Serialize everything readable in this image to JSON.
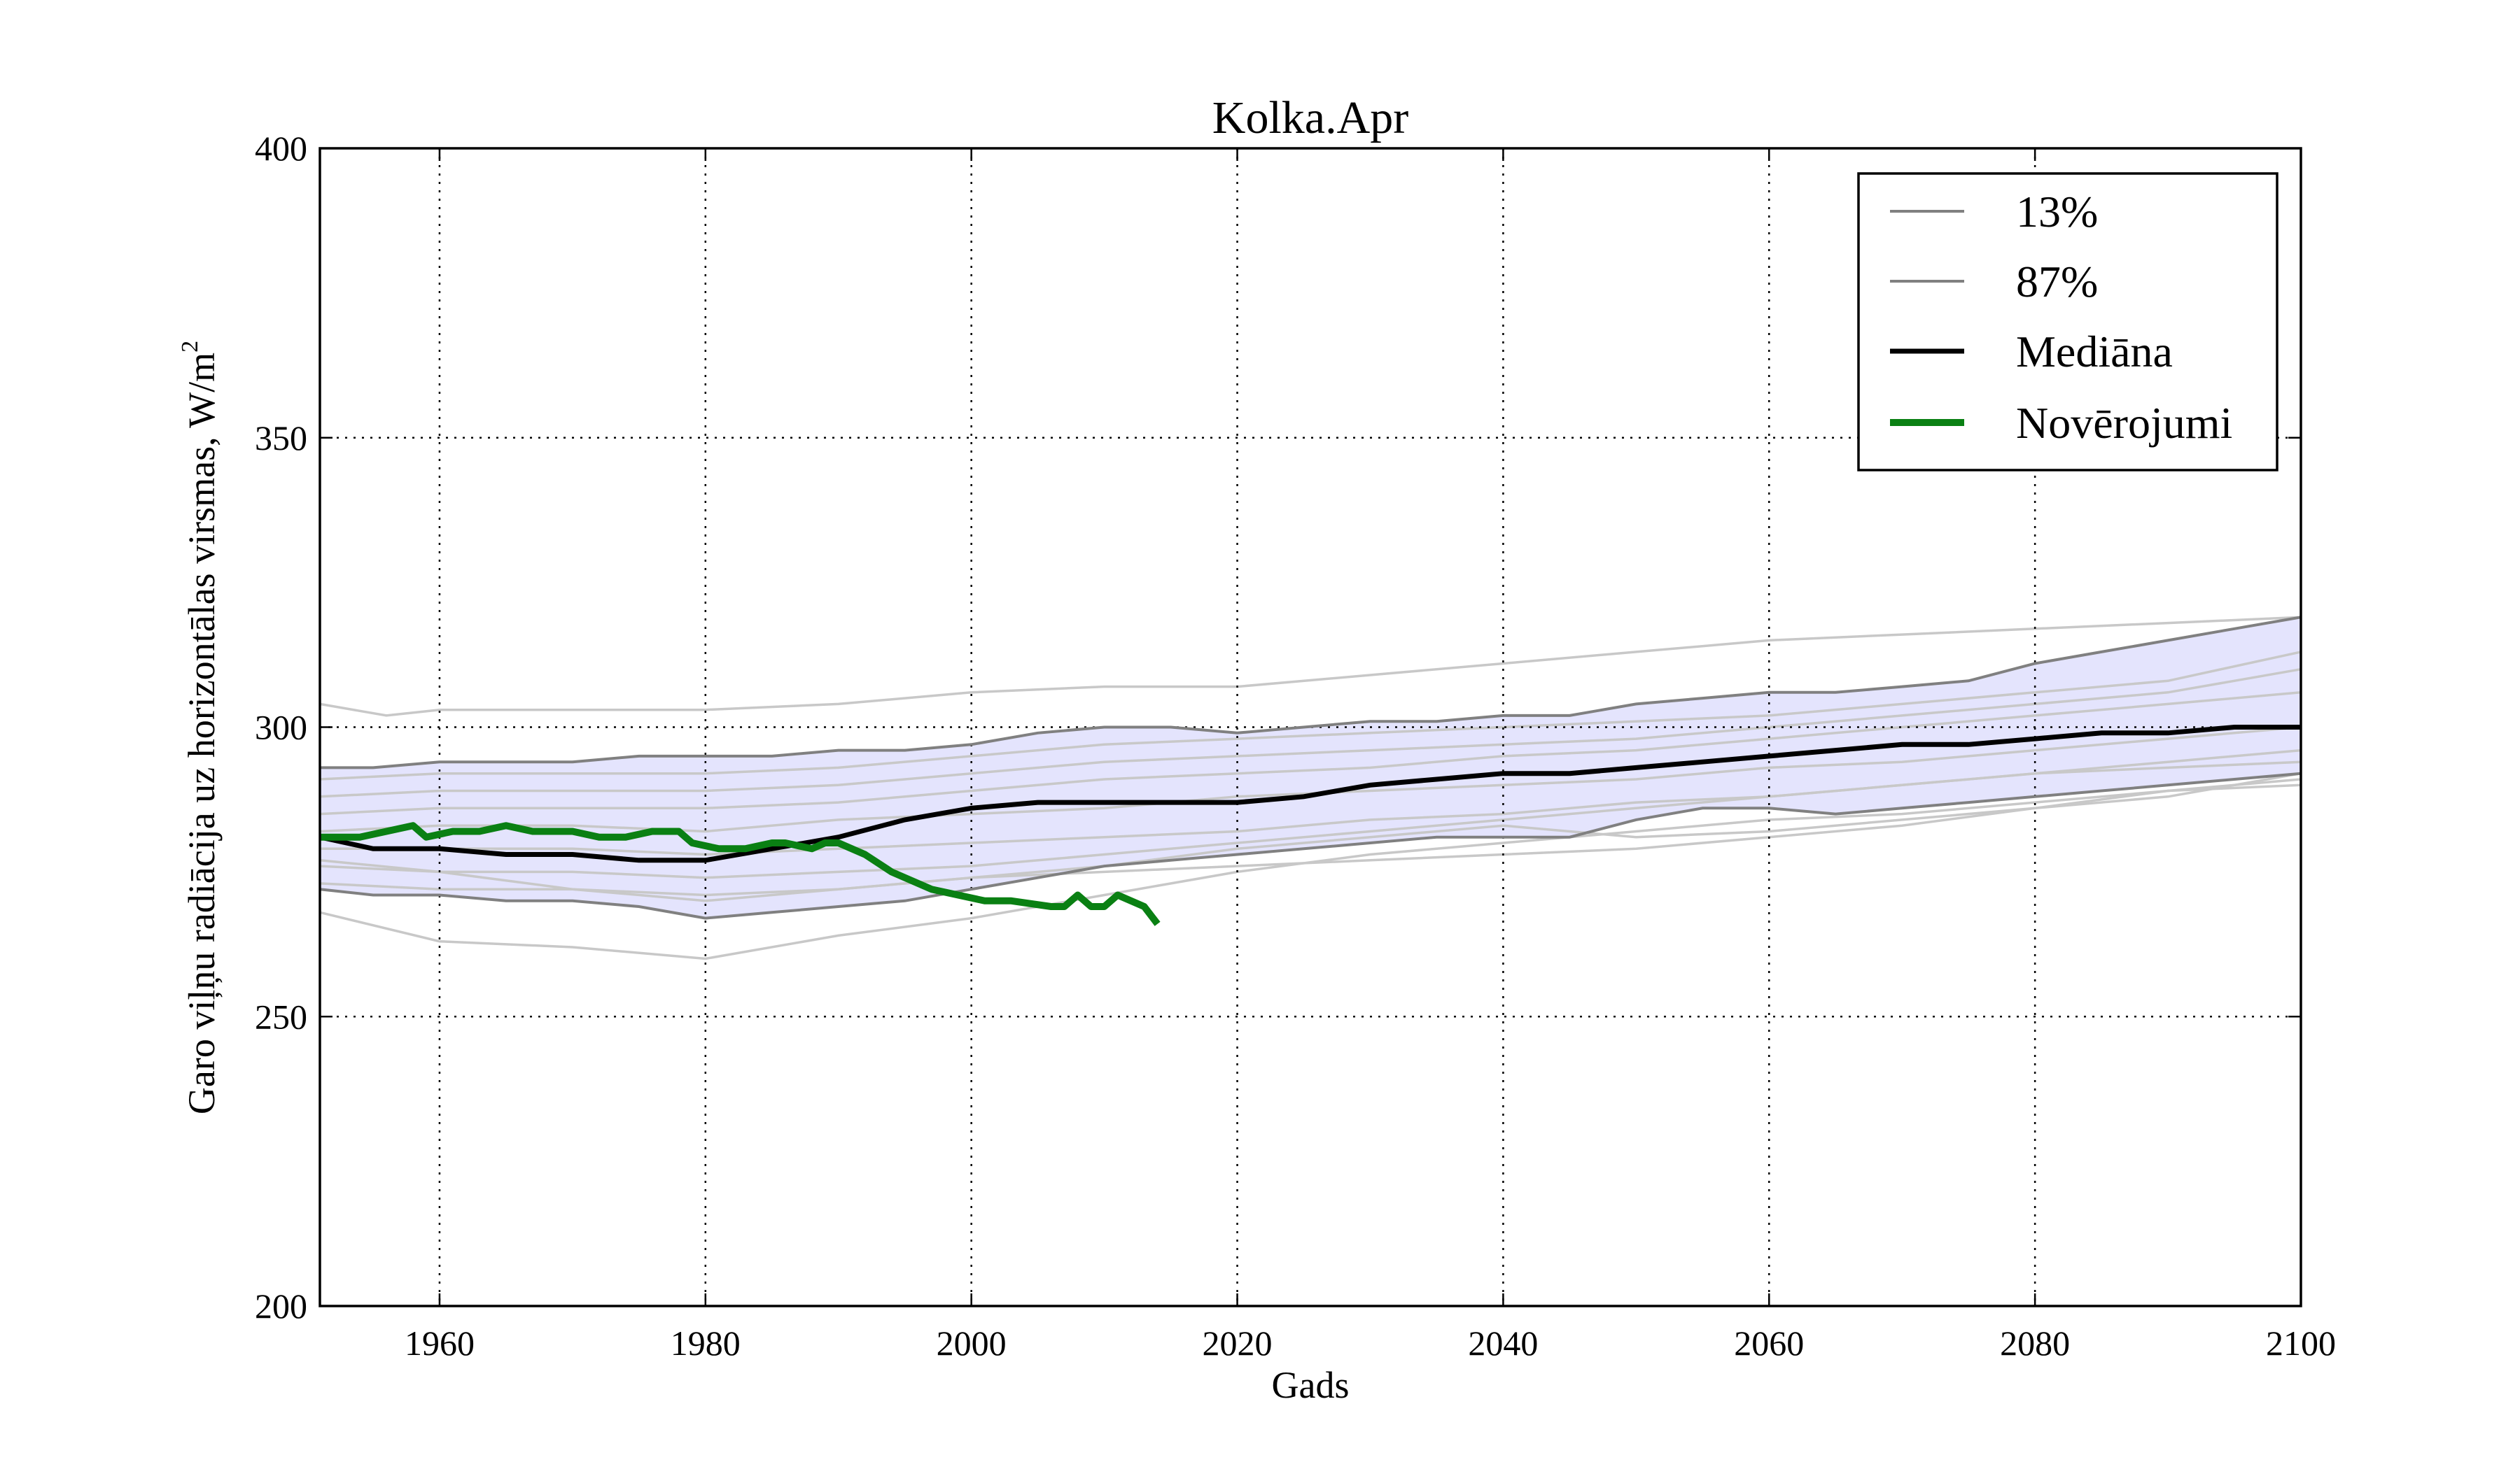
{
  "chart_data": {
    "type": "line",
    "title": "Kolka.Apr",
    "xlabel": "Gads",
    "ylabel": "Garo viļņu radiācija uz horizontālas virsmas, W/m",
    "ylabel_superscript": "2",
    "xlim": [
      1951,
      2100
    ],
    "ylim": [
      200,
      400
    ],
    "xticks": [
      1960,
      1980,
      2000,
      2020,
      2040,
      2060,
      2080,
      2100
    ],
    "yticks": [
      200,
      250,
      300,
      350,
      400
    ],
    "grid": true,
    "legend_position": "top-right",
    "legend": [
      "13%",
      "87%",
      "Mediāna",
      "Novērojumi"
    ],
    "colors": {
      "band_fill": "#e4e4fd",
      "percentile_line": "#808080",
      "model_runs": "#c8c8c8",
      "median": "#000000",
      "observations": "#0a8013"
    },
    "series": [
      {
        "name": "13%",
        "role": "lower-band",
        "x": [
          1951,
          1955,
          1960,
          1965,
          1970,
          1975,
          1980,
          1985,
          1990,
          1995,
          2000,
          2005,
          2010,
          2015,
          2020,
          2025,
          2030,
          2035,
          2040,
          2045,
          2050,
          2055,
          2060,
          2065,
          2070,
          2075,
          2080,
          2085,
          2090,
          2095,
          2100
        ],
        "y": [
          272,
          271,
          271,
          270,
          270,
          269,
          267,
          268,
          269,
          270,
          272,
          274,
          276,
          277,
          278,
          279,
          280,
          281,
          281,
          281,
          284,
          286,
          286,
          285,
          286,
          287,
          288,
          289,
          290,
          291,
          292
        ]
      },
      {
        "name": "87%",
        "role": "upper-band",
        "x": [
          1951,
          1955,
          1960,
          1965,
          1970,
          1975,
          1980,
          1985,
          1990,
          1995,
          2000,
          2005,
          2010,
          2015,
          2020,
          2025,
          2030,
          2035,
          2040,
          2045,
          2050,
          2055,
          2060,
          2065,
          2070,
          2075,
          2080,
          2085,
          2090,
          2095,
          2100
        ],
        "y": [
          293,
          293,
          294,
          294,
          294,
          295,
          295,
          295,
          296,
          296,
          297,
          299,
          300,
          300,
          299,
          300,
          301,
          301,
          302,
          302,
          304,
          305,
          306,
          306,
          307,
          308,
          311,
          313,
          315,
          317,
          319
        ]
      },
      {
        "name": "Mediāna",
        "role": "median",
        "x": [
          1951,
          1955,
          1960,
          1965,
          1970,
          1975,
          1980,
          1985,
          1990,
          1995,
          2000,
          2005,
          2010,
          2015,
          2020,
          2025,
          2030,
          2035,
          2040,
          2045,
          2050,
          2055,
          2060,
          2065,
          2070,
          2075,
          2080,
          2085,
          2090,
          2095,
          2100
        ],
        "y": [
          281,
          279,
          279,
          278,
          278,
          277,
          277,
          279,
          281,
          284,
          286,
          287,
          287,
          287,
          287,
          288,
          290,
          291,
          292,
          292,
          293,
          294,
          295,
          296,
          297,
          297,
          298,
          299,
          299,
          300,
          300
        ]
      },
      {
        "name": "Novērojumi",
        "role": "observations",
        "x": [
          1951,
          1952,
          1954,
          1956,
          1958,
          1959,
          1961,
          1963,
          1965,
          1967,
          1970,
          1972,
          1974,
          1976,
          1978,
          1979,
          1981,
          1983,
          1985,
          1986,
          1988,
          1989,
          1990,
          1992,
          1994,
          1996,
          1997,
          1999,
          2001,
          2003,
          2006,
          2007,
          2008,
          2009,
          2010,
          2011,
          2013,
          2014
        ],
        "y": [
          281,
          281,
          281,
          282,
          283,
          281,
          282,
          282,
          283,
          282,
          282,
          281,
          281,
          282,
          282,
          280,
          279,
          279,
          280,
          280,
          279,
          280,
          280,
          278,
          275,
          273,
          272,
          271,
          270,
          270,
          269,
          269,
          271,
          269,
          269,
          271,
          269,
          266
        ]
      }
    ],
    "model_runs": [
      {
        "x": [
          1951,
          1956,
          1960,
          1970,
          1980,
          1990,
          2000,
          2010,
          2020,
          2030,
          2040,
          2050,
          2060,
          2070,
          2080,
          2090,
          2100
        ],
        "y": [
          304,
          302,
          303,
          303,
          303,
          304,
          306,
          307,
          307,
          309,
          311,
          313,
          315,
          316,
          317,
          318,
          319
        ]
      },
      {
        "x": [
          1951,
          1960,
          1970,
          1980,
          1990,
          2000,
          2010,
          2020,
          2030,
          2040,
          2050,
          2060,
          2070,
          2080,
          2090,
          2100
        ],
        "y": [
          268,
          263,
          262,
          260,
          264,
          267,
          271,
          275,
          278,
          280,
          282,
          284,
          285,
          287,
          289,
          290
        ]
      },
      {
        "x": [
          1951,
          1960,
          1970,
          1980,
          1990,
          2000,
          2010,
          2020,
          2030,
          2040,
          2050,
          2060,
          2070,
          2080,
          2090,
          2100
        ],
        "y": [
          288,
          289,
          289,
          289,
          290,
          292,
          294,
          295,
          296,
          297,
          298,
          300,
          302,
          304,
          306,
          310
        ]
      },
      {
        "x": [
          1951,
          1960,
          1970,
          1980,
          1990,
          2000,
          2010,
          2020,
          2030,
          2040,
          2050,
          2060,
          2070,
          2080,
          2090,
          2100
        ],
        "y": [
          285,
          286,
          286,
          286,
          287,
          289,
          291,
          292,
          293,
          295,
          296,
          298,
          300,
          302,
          304,
          306
        ]
      },
      {
        "x": [
          1951,
          1960,
          1970,
          1980,
          1990,
          2000,
          2010,
          2020,
          2030,
          2040,
          2050,
          2060,
          2070,
          2080,
          2090,
          2100
        ],
        "y": [
          282,
          283,
          283,
          282,
          284,
          285,
          286,
          288,
          289,
          290,
          291,
          293,
          294,
          296,
          298,
          300
        ]
      },
      {
        "x": [
          1951,
          1960,
          1970,
          1980,
          1990,
          2000,
          2010,
          2020,
          2030,
          2040,
          2050,
          2060,
          2070,
          2080,
          2090,
          2100
        ],
        "y": [
          279,
          279,
          279,
          278,
          279,
          280,
          281,
          282,
          284,
          285,
          287,
          288,
          290,
          292,
          294,
          296
        ]
      },
      {
        "x": [
          1951,
          1960,
          1970,
          1980,
          1990,
          2000,
          2010,
          2020,
          2030,
          2040,
          2050,
          2060,
          2070,
          2080,
          2090,
          2100
        ],
        "y": [
          276,
          275,
          275,
          274,
          275,
          276,
          278,
          280,
          282,
          284,
          286,
          288,
          290,
          292,
          293,
          294
        ]
      },
      {
        "x": [
          1951,
          1960,
          1970,
          1980,
          1990,
          2000,
          2010,
          2020,
          2030,
          2040,
          2050,
          2060,
          2070,
          2080,
          2090,
          2100
        ],
        "y": [
          273,
          272,
          272,
          271,
          272,
          274,
          275,
          276,
          277,
          278,
          279,
          281,
          283,
          286,
          289,
          291
        ]
      },
      {
        "x": [
          1951,
          1960,
          1970,
          1980,
          1990,
          2000,
          2010,
          2020,
          2030,
          2040,
          2050,
          2060,
          2070,
          2080,
          2090,
          2100
        ],
        "y": [
          277,
          275,
          272,
          270,
          272,
          274,
          276,
          279,
          281,
          283,
          281,
          282,
          284,
          286,
          288,
          292
        ]
      },
      {
        "x": [
          1951,
          1960,
          1970,
          1980,
          1990,
          2000,
          2010,
          2020,
          2030,
          2040,
          2050,
          2060,
          2070,
          2080,
          2090,
          2100
        ],
        "y": [
          291,
          292,
          292,
          292,
          293,
          295,
          297,
          298,
          299,
          300,
          301,
          302,
          304,
          306,
          308,
          313
        ]
      }
    ]
  }
}
